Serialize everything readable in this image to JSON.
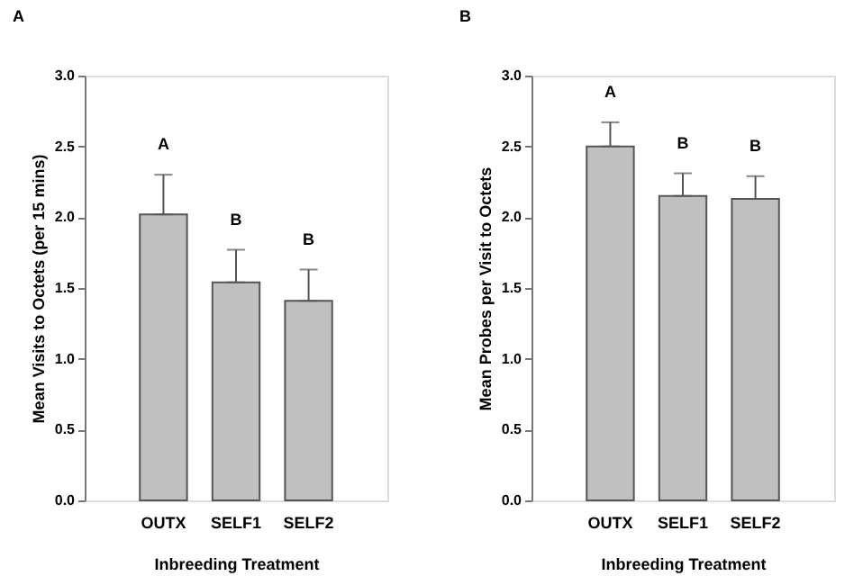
{
  "chart_data": [
    {
      "type": "bar",
      "title": "A",
      "xlabel": "Inbreeding Treatment",
      "ylabel": "Mean Visits to Octets (per 15 mins)",
      "categories": [
        "OUTX",
        "SELF1",
        "SELF2"
      ],
      "series": [
        {
          "color": "#c0c0c0",
          "values": [
            2.02,
            1.54,
            1.41
          ],
          "errors": [
            [
              2.02,
              2.3
            ],
            [
              1.54,
              1.77
            ],
            [
              1.41,
              1.63
            ]
          ]
        }
      ],
      "ylim": [
        0,
        3
      ],
      "yticks": [
        {
          "value": 0,
          "label": "0.0"
        },
        {
          "value": 0.5,
          "label": "0.5"
        },
        {
          "value": 1,
          "label": "1.0"
        },
        {
          "value": 1.5,
          "label": "1.5"
        },
        {
          "value": 2,
          "label": "2.0"
        },
        {
          "value": 2.5,
          "label": "2.5"
        },
        {
          "value": 3,
          "label": "3.0"
        }
      ],
      "grid": false,
      "annotations": [
        "A",
        "B",
        "B"
      ]
    },
    {
      "type": "bar",
      "title": "B",
      "xlabel": "Inbreeding Treatment",
      "ylabel": "Mean Probes per Visit to Octets",
      "categories": [
        "OUTX",
        "SELF1",
        "SELF2"
      ],
      "series": [
        {
          "color": "#c0c0c0",
          "values": [
            2.5,
            2.15,
            2.13
          ],
          "errors": [
            [
              2.5,
              2.67
            ],
            [
              2.15,
              2.31
            ],
            [
              2.13,
              2.29
            ]
          ]
        }
      ],
      "ylim": [
        0,
        3
      ],
      "yticks": [
        {
          "value": 0,
          "label": "0.0"
        },
        {
          "value": 0.5,
          "label": "0.5"
        },
        {
          "value": 1,
          "label": "1.0"
        },
        {
          "value": 1.5,
          "label": "1.5"
        },
        {
          "value": 2,
          "label": "2.0"
        },
        {
          "value": 2.5,
          "label": "2.5"
        },
        {
          "value": 3,
          "label": "3.0"
        }
      ],
      "grid": false,
      "annotations": [
        "A",
        "B",
        "B"
      ]
    }
  ]
}
